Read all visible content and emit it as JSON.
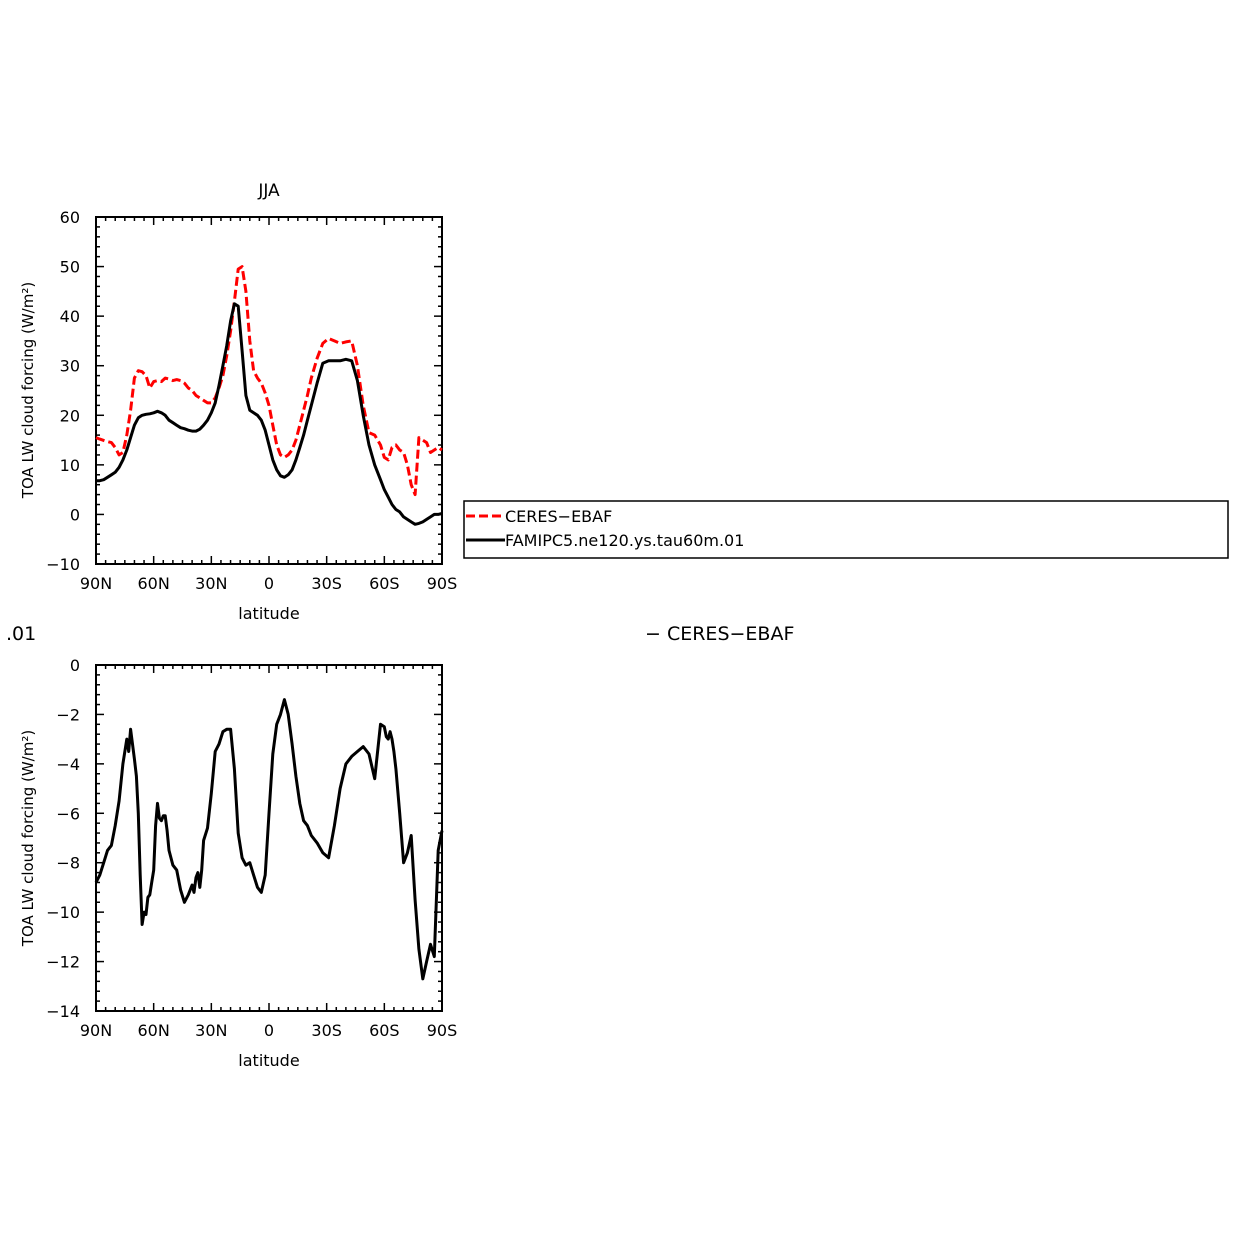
{
  "chart_data": [
    {
      "type": "line",
      "title": "JJA",
      "xlabel": "latitude",
      "ylabel": "TOA LW cloud forcing (W/m²)",
      "xlim": [
        90,
        -90
      ],
      "ylim": [
        -10,
        60
      ],
      "xticks": [
        90,
        60,
        30,
        0,
        -30,
        -60,
        -90
      ],
      "xticklabels": [
        "90N",
        "60N",
        "30N",
        "0",
        "30S",
        "60S",
        "90S"
      ],
      "yticks": [
        -10,
        0,
        10,
        20,
        30,
        40,
        50,
        60
      ],
      "yticklabels": [
        "−10",
        "0",
        "10",
        "20",
        "30",
        "40",
        "50",
        "60"
      ],
      "legend": "right",
      "series": [
        {
          "name": "CERES−EBAF",
          "color": "#ff0000",
          "dash": "dashed",
          "x": [
            90,
            88,
            85,
            82,
            80,
            78,
            76,
            74,
            72,
            70,
            68,
            66,
            64,
            62,
            60,
            58,
            56,
            54,
            52,
            50,
            48,
            46,
            44,
            42,
            40,
            38,
            36,
            34,
            32,
            30,
            28,
            26,
            24,
            22,
            20,
            18,
            16,
            14,
            12,
            10,
            8,
            6,
            4,
            2,
            0,
            -2,
            -4,
            -6,
            -8,
            -10,
            -12,
            -14,
            -16,
            -18,
            -20,
            -22,
            -25,
            -28,
            -31,
            -34,
            -37,
            -40,
            -43,
            -46,
            -49,
            -52,
            -55,
            -58,
            -60,
            -62,
            -64,
            -66,
            -68,
            -70,
            -72,
            -74,
            -76,
            -78,
            -80,
            -82,
            -84,
            -86,
            -88,
            -90
          ],
          "y": [
            15.5,
            15.2,
            14.8,
            14.5,
            13.5,
            12.0,
            12.5,
            16.0,
            21.0,
            27.5,
            29.0,
            28.8,
            28.0,
            25.5,
            26.8,
            27.0,
            26.8,
            27.5,
            27.3,
            27.0,
            27.2,
            27.0,
            26.5,
            25.5,
            25.0,
            24.0,
            23.5,
            23.0,
            22.5,
            22.5,
            23.5,
            25.5,
            28.0,
            32.0,
            37.0,
            43.0,
            49.5,
            50.0,
            45.0,
            35.0,
            29.0,
            27.5,
            26.5,
            24.5,
            22.0,
            18.0,
            14.0,
            12.0,
            11.5,
            12.0,
            13.0,
            15.0,
            18.0,
            21.0,
            24.0,
            27.5,
            31.5,
            34.5,
            35.5,
            35.0,
            34.5,
            34.8,
            35.0,
            30.0,
            22.0,
            16.5,
            16.0,
            14.0,
            11.5,
            11.0,
            13.5,
            14.0,
            13.0,
            12.5,
            10.0,
            6.0,
            4.0,
            15.5,
            15.0,
            14.5,
            12.5,
            13.0,
            13.5,
            13.0
          ]
        },
        {
          "name": "FAMIPC5.ne120.ys.tau60m.01",
          "color": "#000000",
          "dash": "solid",
          "x": [
            90,
            88,
            86,
            84,
            82,
            80,
            78,
            76,
            74,
            72,
            70,
            68,
            66,
            64,
            62,
            60,
            58,
            56,
            54,
            52,
            50,
            48,
            46,
            44,
            42,
            40,
            38,
            36,
            34,
            32,
            30,
            28,
            26,
            24,
            22,
            20,
            18,
            16,
            14,
            12,
            10,
            8,
            6,
            4,
            2,
            0,
            -2,
            -4,
            -6,
            -8,
            -10,
            -12,
            -14,
            -16,
            -18,
            -20,
            -22,
            -25,
            -28,
            -31,
            -34,
            -37,
            -40,
            -43,
            -46,
            -49,
            -52,
            -55,
            -58,
            -60,
            -62,
            -64,
            -66,
            -68,
            -70,
            -72,
            -74,
            -76,
            -78,
            -80,
            -82,
            -84,
            -86,
            -88,
            -90
          ],
          "y": [
            6.8,
            6.8,
            7.0,
            7.5,
            8.0,
            8.5,
            9.5,
            11.0,
            13.0,
            15.5,
            18.0,
            19.5,
            20.0,
            20.2,
            20.3,
            20.5,
            20.8,
            20.5,
            20.0,
            19.0,
            18.5,
            18.0,
            17.5,
            17.3,
            17.0,
            16.8,
            16.8,
            17.2,
            18.0,
            19.0,
            20.5,
            22.5,
            26.0,
            30.0,
            34.0,
            39.0,
            42.5,
            42.0,
            33.0,
            24.0,
            21.0,
            20.5,
            20.0,
            19.0,
            17.0,
            14.0,
            11.0,
            9.0,
            7.8,
            7.5,
            8.0,
            9.0,
            11.0,
            13.5,
            16.0,
            19.0,
            22.0,
            26.5,
            30.5,
            31.0,
            31.0,
            31.0,
            31.3,
            31.0,
            27.0,
            20.0,
            14.0,
            10.0,
            7.0,
            5.0,
            3.5,
            2.0,
            1.0,
            0.5,
            -0.5,
            -1.0,
            -1.5,
            -2.0,
            -1.8,
            -1.5,
            -1.0,
            -0.5,
            0.0,
            0.0,
            0.2
          ]
        }
      ]
    },
    {
      "type": "line",
      "title": "",
      "xlabel": "latitude",
      "ylabel": "TOA LW cloud forcing (W/m²)",
      "xlim": [
        90,
        -90
      ],
      "ylim": [
        -14,
        0
      ],
      "xticks": [
        90,
        60,
        30,
        0,
        -30,
        -60,
        -90
      ],
      "xticklabels": [
        "90N",
        "60N",
        "30N",
        "0",
        "30S",
        "60S",
        "90S"
      ],
      "yticks": [
        -14,
        -12,
        -10,
        -8,
        -6,
        -4,
        -2,
        0
      ],
      "yticklabels": [
        "−14",
        "−12",
        "−10",
        "−8",
        "−6",
        "−4",
        "−2",
        "0"
      ],
      "series": [
        {
          "color": "#000000",
          "dash": "solid",
          "x": [
            90,
            88,
            86,
            84,
            82,
            80,
            78,
            76,
            74,
            73,
            72,
            71,
            70,
            69,
            68,
            67,
            66,
            65,
            64,
            63,
            62,
            61,
            60,
            59,
            58,
            57,
            56,
            55,
            54,
            53,
            52,
            50,
            48,
            46,
            44,
            42,
            40,
            39,
            38,
            37,
            36,
            35,
            34,
            32,
            30,
            28,
            26,
            24,
            22,
            20,
            18,
            16,
            14,
            12,
            10,
            8,
            6,
            4,
            2,
            0,
            -2,
            -4,
            -6,
            -8,
            -10,
            -12,
            -14,
            -16,
            -18,
            -20,
            -22,
            -25,
            -28,
            -31,
            -34,
            -37,
            -40,
            -43,
            -46,
            -49,
            -52,
            -55,
            -58,
            -60,
            -61,
            -62,
            -63,
            -64,
            -65,
            -66,
            -68,
            -70,
            -72,
            -74,
            -76,
            -78,
            -80,
            -82,
            -84,
            -86,
            -88,
            -90
          ],
          "y": [
            -8.8,
            -8.5,
            -8.0,
            -7.5,
            -7.3,
            -6.5,
            -5.5,
            -4.0,
            -3.0,
            -3.5,
            -2.6,
            -3.2,
            -3.8,
            -4.5,
            -6.0,
            -8.5,
            -10.5,
            -10.0,
            -10.1,
            -9.4,
            -9.3,
            -8.8,
            -8.3,
            -6.5,
            -5.6,
            -6.2,
            -6.3,
            -6.1,
            -6.1,
            -6.7,
            -7.5,
            -8.1,
            -8.3,
            -9.1,
            -9.6,
            -9.3,
            -8.9,
            -9.2,
            -8.6,
            -8.4,
            -9.0,
            -8.3,
            -7.1,
            -6.6,
            -5.2,
            -3.5,
            -3.2,
            -2.7,
            -2.6,
            -2.6,
            -4.2,
            -6.8,
            -7.8,
            -8.1,
            -8.0,
            -8.5,
            -9.0,
            -9.2,
            -8.5,
            -6.0,
            -3.6,
            -2.4,
            -2.0,
            -1.4,
            -2.0,
            -3.2,
            -4.5,
            -5.6,
            -6.3,
            -6.5,
            -6.9,
            -7.2,
            -7.6,
            -7.8,
            -6.5,
            -5.0,
            -4.0,
            -3.7,
            -3.5,
            -3.3,
            -3.6,
            -4.6,
            -2.4,
            -2.5,
            -2.9,
            -3.0,
            -2.7,
            -3.0,
            -3.5,
            -4.2,
            -6.0,
            -8.0,
            -7.6,
            -6.9,
            -9.5,
            -11.5,
            -12.7,
            -12.0,
            -11.3,
            -11.8,
            -7.5,
            -6.7
          ]
        }
      ]
    }
  ],
  "overlay_texts": {
    "left_fragment": ".01",
    "right_fragment": "− CERES−EBAF"
  }
}
